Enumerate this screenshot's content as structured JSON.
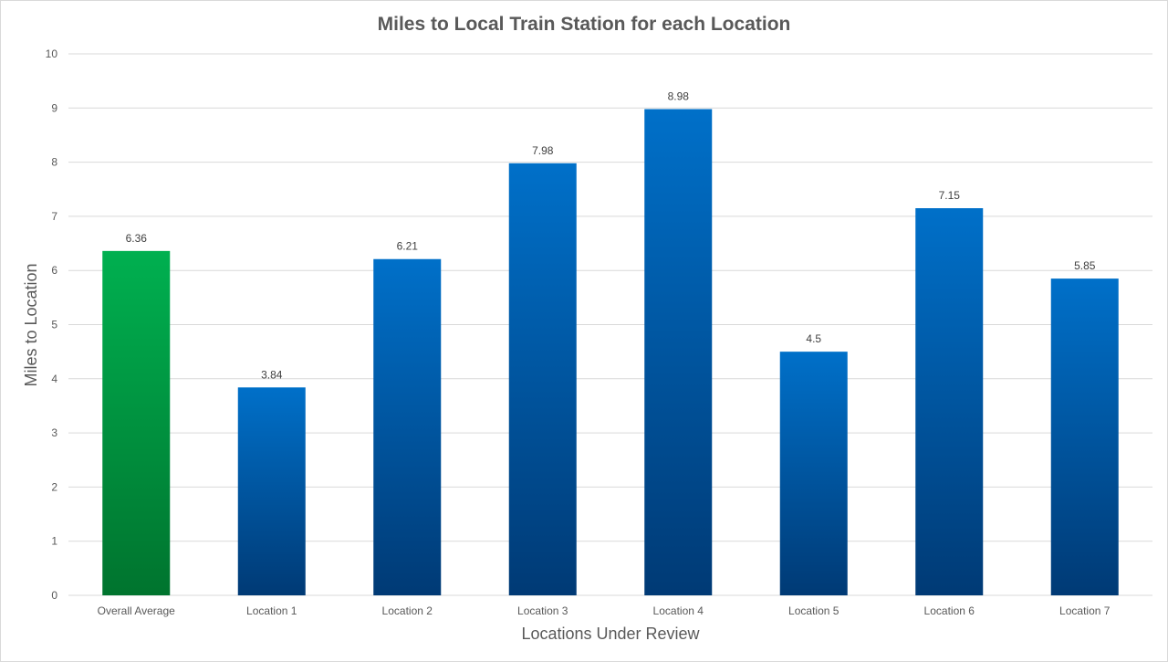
{
  "chart_data": {
    "type": "bar",
    "title": "Miles to Local Train Station for each Location",
    "xlabel": "Locations Under Review",
    "ylabel": "Miles to Location",
    "categories": [
      "Overall Average",
      "Location 1",
      "Location 2",
      "Location 3",
      "Location 4",
      "Location 5",
      "Location 6",
      "Location 7"
    ],
    "values": [
      6.36,
      3.84,
      6.21,
      7.98,
      8.98,
      4.5,
      7.15,
      5.85
    ],
    "data_labels": [
      "6.36",
      "3.84",
      "6.21",
      "7.98",
      "8.98",
      "4.5",
      "7.15",
      "5.85"
    ],
    "ylim": [
      0,
      10
    ],
    "yticks": [
      "0",
      "1",
      "2",
      "3",
      "4",
      "5",
      "6",
      "7",
      "8",
      "9",
      "10"
    ],
    "grid": true,
    "legend": "none",
    "colors": {
      "highlight_top": "#00b050",
      "highlight_bottom": "#00742e",
      "bar_top": "#0070c9",
      "bar_bottom": "#003a75",
      "grid": "#d9d9d9"
    }
  }
}
